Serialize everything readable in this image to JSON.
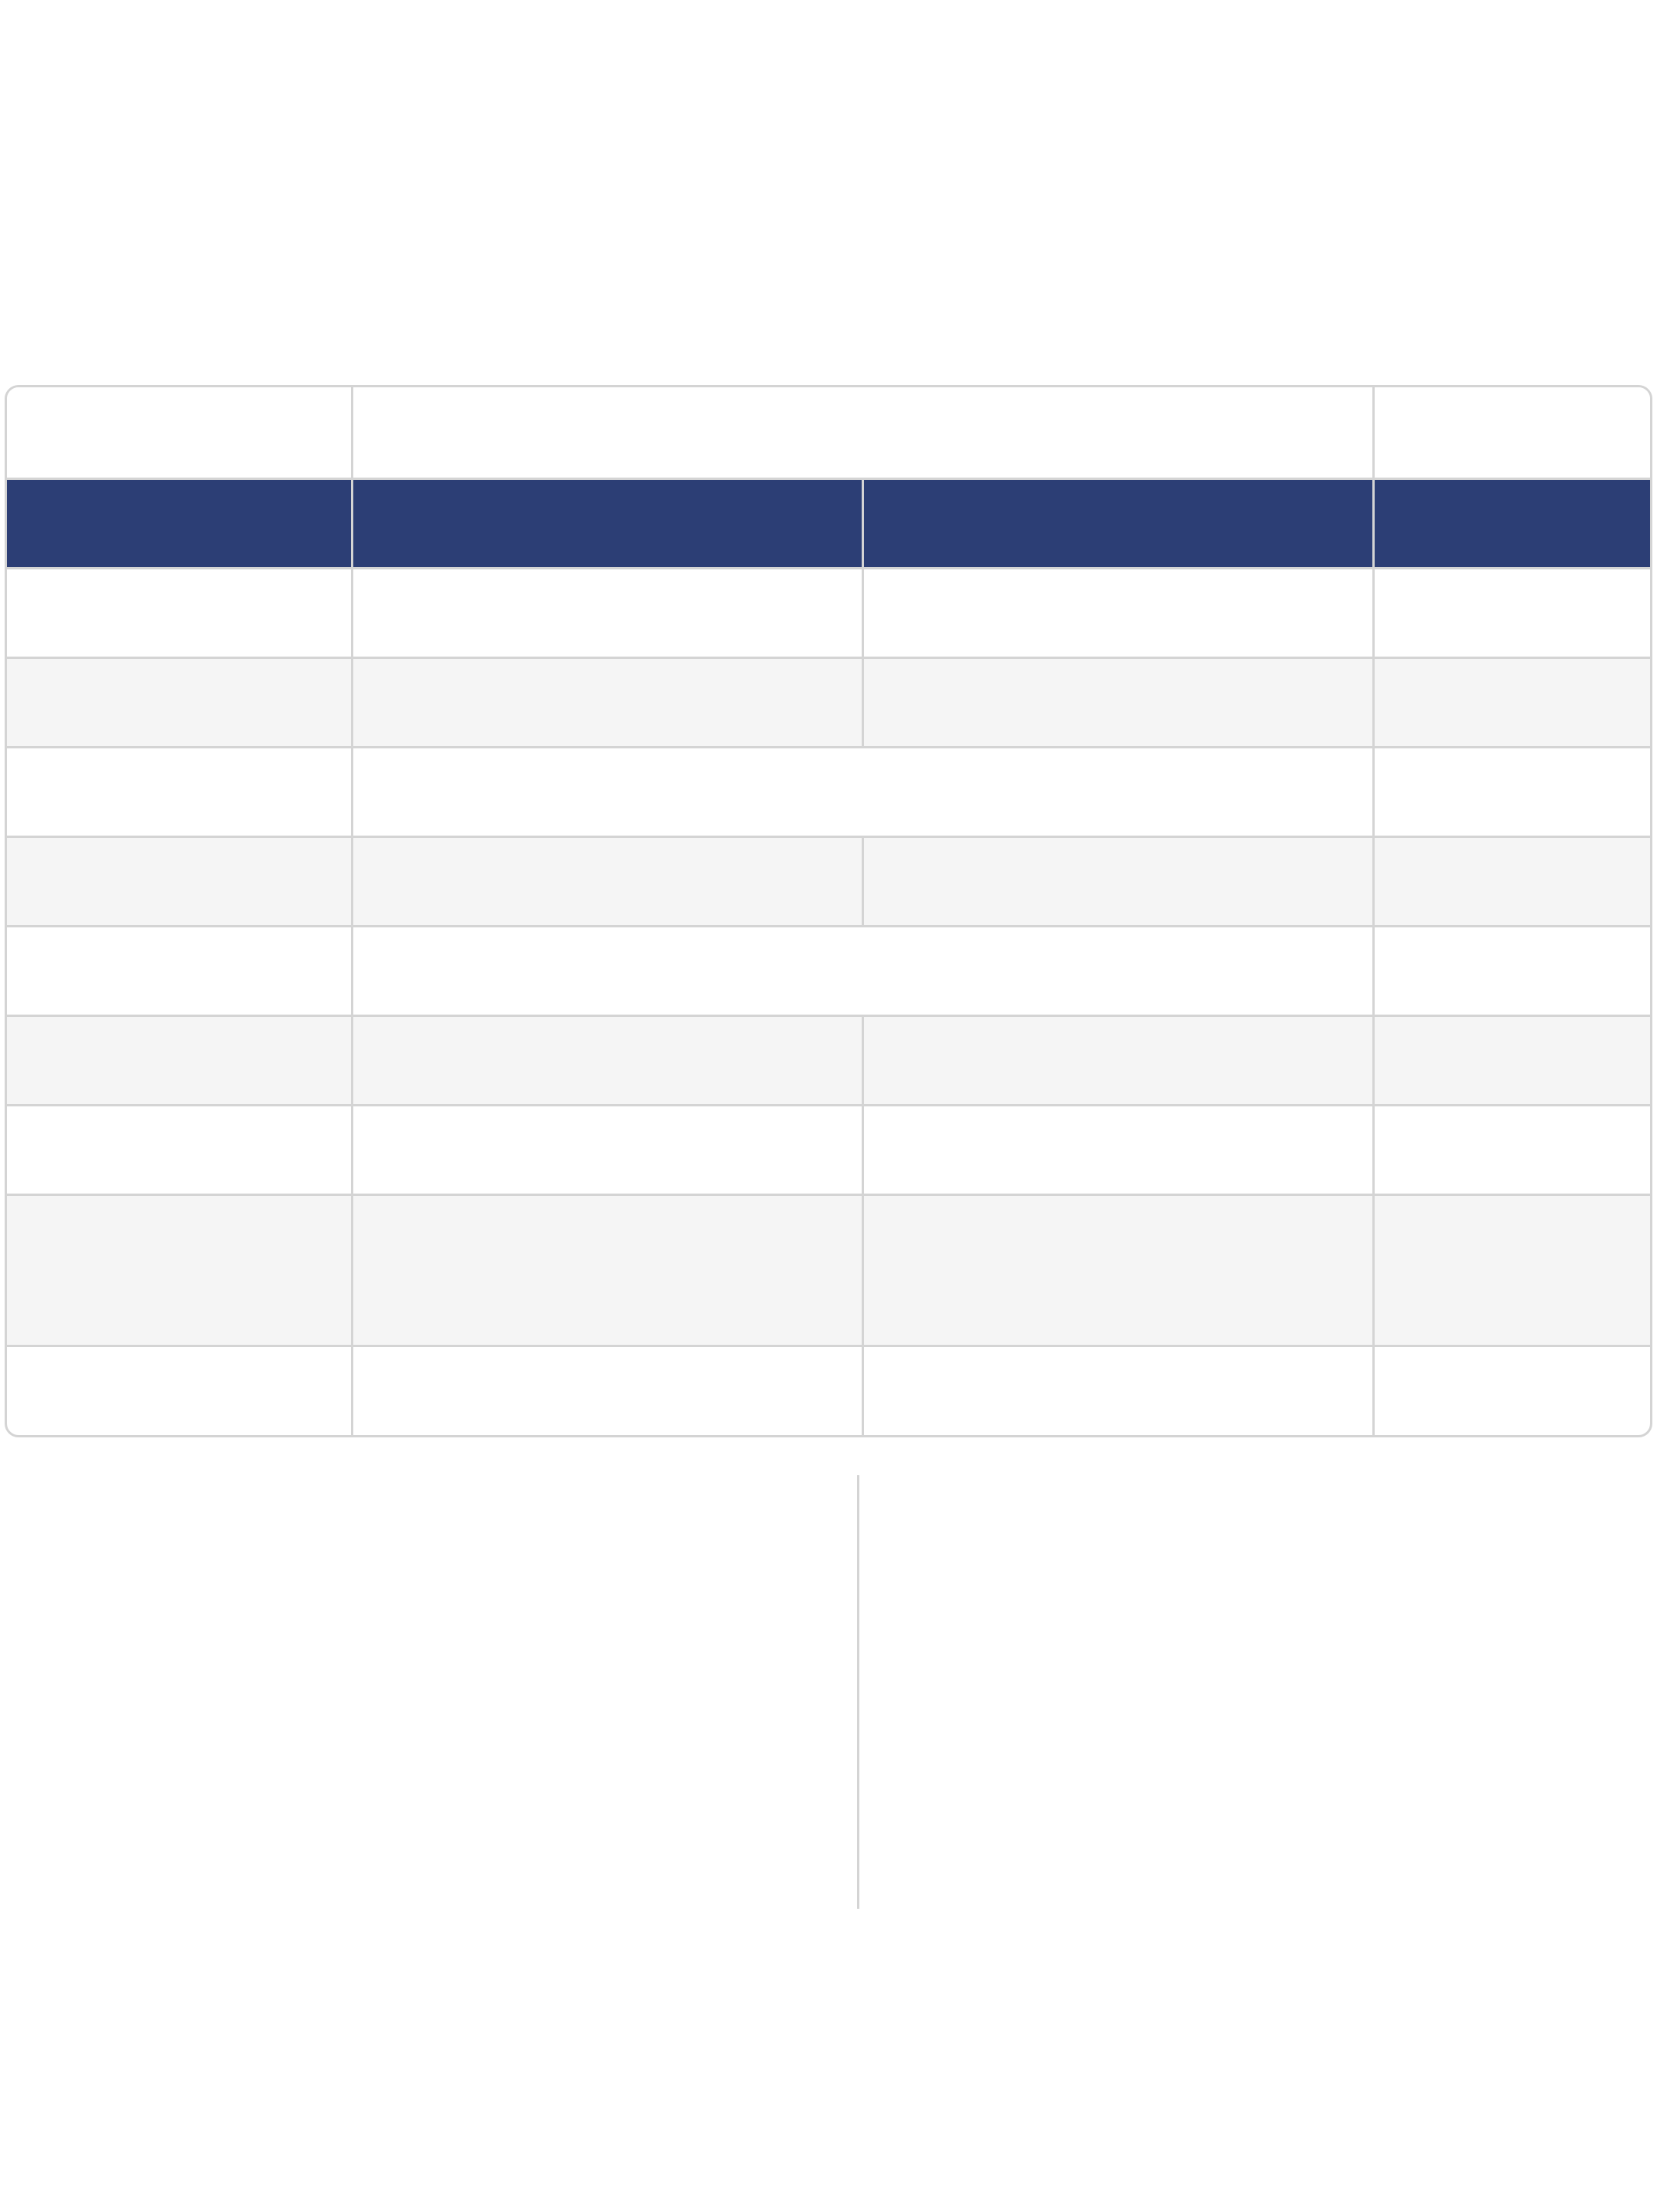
{
  "colors": {
    "header_bg": "#2c3e75",
    "border": "#d4d4d4",
    "alt_row": "#f5f5f5"
  },
  "table": {
    "top_row": [
      "",
      "",
      ""
    ],
    "header": [
      "",
      "",
      "",
      ""
    ],
    "rows": [
      {
        "cells": [
          "",
          "",
          "",
          ""
        ]
      },
      {
        "cells": [
          "",
          "",
          "",
          ""
        ]
      },
      {
        "cells": [
          "",
          "",
          ""
        ]
      },
      {
        "cells": [
          "",
          "",
          "",
          ""
        ]
      },
      {
        "cells": [
          "",
          "",
          ""
        ]
      },
      {
        "cells": [
          "",
          "",
          "",
          ""
        ]
      },
      {
        "cells": [
          "",
          "",
          "",
          ""
        ]
      },
      {
        "cells": [
          "",
          "",
          "",
          ""
        ]
      },
      {
        "cells": [
          "",
          "",
          "",
          ""
        ]
      }
    ]
  }
}
